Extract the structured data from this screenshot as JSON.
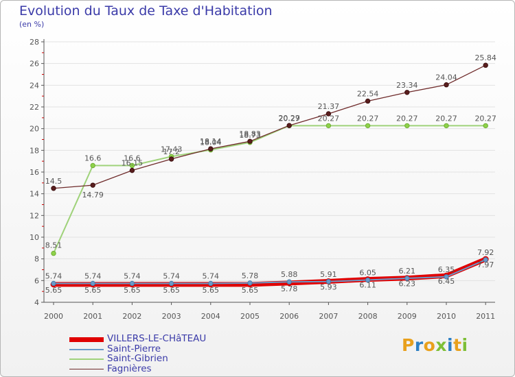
{
  "header": {
    "title": "Evolution du Taux de Taxe d'Habitation",
    "subtitle": "(en %)"
  },
  "logo": {
    "letters": [
      "P",
      "r",
      "o",
      "x",
      "i",
      "t",
      "i"
    ],
    "colors": [
      "#e8a01c",
      "#2d7fc4",
      "#e8a01c",
      "#7dbf36",
      "#2d7fc4",
      "#e8a01c",
      "#7dbf36"
    ]
  },
  "colors": {
    "axis": "#555555",
    "grid": "#e2e2e2",
    "tick_label": "#555555",
    "data_label": "#555555"
  },
  "chart_data": {
    "type": "line",
    "title": "Evolution du Taux de Taxe d'Habitation",
    "subtitle": "(en %)",
    "xlabel": "",
    "ylabel": "",
    "x": [
      2000,
      2001,
      2002,
      2003,
      2004,
      2005,
      2006,
      2007,
      2008,
      2009,
      2010,
      2011
    ],
    "ylim": [
      4,
      28
    ],
    "yticks": [
      4,
      6,
      8,
      10,
      12,
      14,
      16,
      18,
      20,
      22,
      24,
      26,
      28
    ],
    "grid": true,
    "legend_position": "bottom-left",
    "series": [
      {
        "name": "VILLERS-LE-CHâTEAU",
        "color": "#e00000",
        "values": [
          5.65,
          5.65,
          5.65,
          5.65,
          5.65,
          5.65,
          5.78,
          5.93,
          6.11,
          6.23,
          6.45,
          7.97
        ],
        "labels": [
          "5.65",
          "5.65",
          "5.65",
          "5.65",
          "5.65",
          "5.65",
          "5.78",
          "5.93",
          "6.11",
          "6.23",
          "6.45",
          "7.97"
        ]
      },
      {
        "name": "Saint-Pierre",
        "color": "#6a9ac8",
        "values": [
          5.74,
          5.74,
          5.74,
          5.74,
          5.74,
          5.78,
          5.88,
          5.91,
          6.05,
          6.21,
          6.35,
          7.92
        ],
        "labels": [
          "5.74",
          "5.74",
          "5.74",
          "5.74",
          "5.74",
          "5.78",
          "5.88",
          "5.91",
          "6.05",
          "6.21",
          "6.35",
          "7.92"
        ]
      },
      {
        "name": "Saint-Gibrien",
        "color": "#9fd27a",
        "values": [
          8.51,
          16.6,
          16.6,
          17.43,
          18.04,
          18.73,
          20.27,
          20.27,
          20.27,
          20.27,
          20.27,
          20.27
        ],
        "labels": [
          "8.51",
          "16.6",
          "16.6",
          "17.43",
          "18.04",
          "18.73",
          "20.27",
          "20.27",
          "20.27",
          "20.27",
          "20.27",
          "20.27"
        ]
      },
      {
        "name": "Fagnières",
        "color": "#6e2a2a",
        "values": [
          14.5,
          14.79,
          16.15,
          17.2,
          18.14,
          18.83,
          20.29,
          21.37,
          22.54,
          23.34,
          24.04,
          25.84
        ],
        "labels": [
          "14.5",
          "14.79",
          "16.15",
          "17.2",
          "18.14",
          "18.83",
          "20.29",
          "21.37",
          "22.54",
          "23.34",
          "24.04",
          "25.84"
        ]
      }
    ]
  }
}
